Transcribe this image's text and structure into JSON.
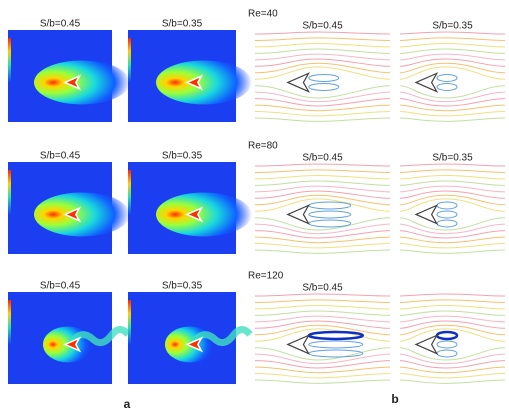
{
  "figure": {
    "rows": [
      {
        "re": "Re=40",
        "a": [
          "S/b=0.45",
          "S/b=0.35"
        ],
        "b": [
          "S/b=0.45",
          "S/b=0.35"
        ]
      },
      {
        "re": "Re=80",
        "a": [
          "S/b=0.45",
          "S/b=0.35"
        ],
        "b": [
          "S/b=0.45",
          "S/b=0.35"
        ]
      },
      {
        "re": "Re=120",
        "a": [
          "S/b=0.45",
          "S/b=0.35"
        ],
        "b": [
          "S/b=0.45"
        ]
      }
    ],
    "panel_labels": [
      "a",
      "b"
    ]
  }
}
